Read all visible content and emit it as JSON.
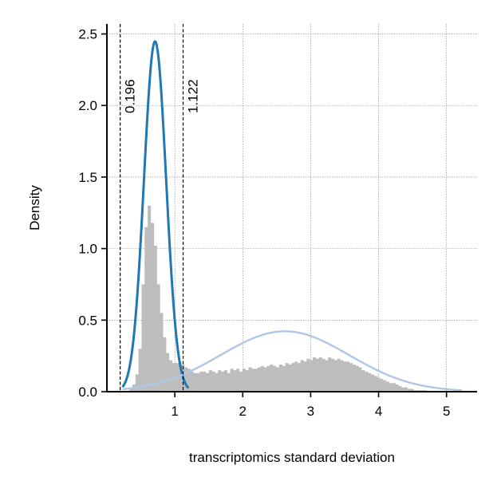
{
  "chart_data": {
    "type": "area",
    "title": "",
    "xlabel": "transcriptomics standard deviation",
    "ylabel": "Density",
    "xlim": [
      0.0,
      5.45
    ],
    "ylim": [
      0,
      2.57
    ],
    "x_ticks": [
      1,
      2,
      3,
      4,
      5
    ],
    "y_ticks": [
      0.0,
      0.5,
      1.0,
      1.5,
      2.0,
      2.5
    ],
    "x_tick_labels": [
      "1",
      "2",
      "3",
      "4",
      "5"
    ],
    "y_tick_labels": [
      "0.0",
      "0.5",
      "1.0",
      "1.5",
      "2.0",
      "2.5"
    ],
    "grid": true,
    "colors": {
      "histogram": "#bdbdbd",
      "fit_low": "#1f77b4",
      "fit_high": "#aec7e8",
      "threshold": "#000000",
      "grid": "#808080"
    },
    "histogram": {
      "bin_start": 0.33,
      "bin_width": 0.045,
      "densities": [
        0.02,
        0.05,
        0.12,
        0.3,
        0.75,
        1.15,
        1.3,
        1.18,
        1.02,
        0.75,
        0.55,
        0.38,
        0.27,
        0.22,
        0.2,
        0.2,
        0.21,
        0.19,
        0.17,
        0.16,
        0.14,
        0.13,
        0.13,
        0.14,
        0.14,
        0.13,
        0.15,
        0.14,
        0.13,
        0.15,
        0.14,
        0.15,
        0.13,
        0.16,
        0.15,
        0.16,
        0.14,
        0.16,
        0.15,
        0.17,
        0.16,
        0.16,
        0.17,
        0.18,
        0.17,
        0.18,
        0.19,
        0.18,
        0.17,
        0.19,
        0.18,
        0.2,
        0.19,
        0.2,
        0.21,
        0.2,
        0.22,
        0.21,
        0.23,
        0.22,
        0.24,
        0.23,
        0.24,
        0.23,
        0.22,
        0.24,
        0.23,
        0.22,
        0.23,
        0.22,
        0.21,
        0.21,
        0.2,
        0.19,
        0.18,
        0.17,
        0.15,
        0.14,
        0.13,
        0.12,
        0.11,
        0.1,
        0.09,
        0.08,
        0.07,
        0.06,
        0.06,
        0.05,
        0.04,
        0.03,
        0.03,
        0.02,
        0.02,
        0.01,
        0.01,
        0.01,
        0.01,
        0.005,
        0.005,
        0.003
      ]
    },
    "series": [
      {
        "type": "normal_fit",
        "mean": 0.709,
        "sd": 0.163,
        "x_range": [
          0.23,
          1.2
        ]
      },
      {
        "type": "normal_fit",
        "mean": 2.62,
        "sd": 0.945,
        "x_range": [
          0.23,
          5.23
        ]
      }
    ],
    "thresholds": [
      {
        "x": 0.196,
        "label": "0.196"
      },
      {
        "x": 1.122,
        "label": "1.122"
      }
    ]
  }
}
